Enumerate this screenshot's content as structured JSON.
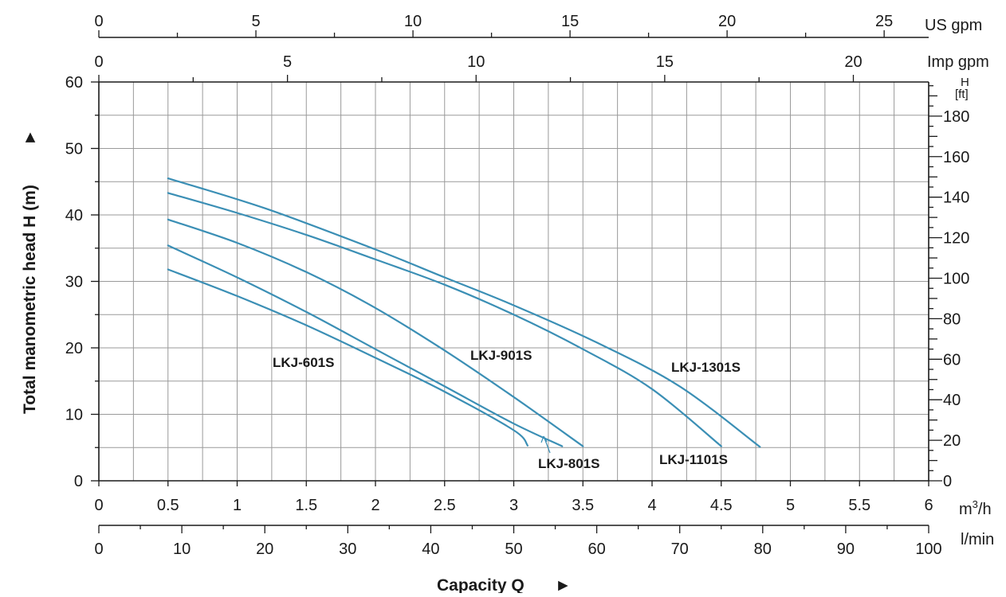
{
  "chart_data": {
    "type": "line",
    "axes": {
      "x_primary": {
        "label": "Capacity Q",
        "unit": "m³/h",
        "range": [
          0,
          6
        ],
        "ticks": [
          0,
          0.5,
          1,
          1.5,
          2,
          2.5,
          3,
          3.5,
          4,
          4.5,
          5,
          5.5,
          6
        ],
        "tick_labels": [
          "0",
          "0.5",
          "1",
          "1.5",
          "2",
          "2.5",
          "3",
          "3.5",
          "4",
          "4.5",
          "5",
          "5.5",
          "6"
        ]
      },
      "x_lmin": {
        "unit": "l/min",
        "range": [
          0,
          100
        ],
        "ticks": [
          0,
          10,
          20,
          30,
          40,
          50,
          60,
          70,
          80,
          90,
          100
        ],
        "tick_labels": [
          "0",
          "10",
          "20",
          "30",
          "40",
          "50",
          "60",
          "70",
          "80",
          "90",
          "100"
        ]
      },
      "x_imp_gpm": {
        "unit": "Imp gpm",
        "ticks": [
          0,
          5,
          10,
          15,
          20
        ],
        "tick_labels": [
          "0",
          "5",
          "10",
          "15",
          "20"
        ]
      },
      "x_us_gpm": {
        "unit": "US gpm",
        "ticks": [
          0,
          5,
          10,
          15,
          20,
          25
        ],
        "tick_labels": [
          "0",
          "5",
          "10",
          "15",
          "20",
          "25"
        ]
      },
      "y_primary": {
        "label": "Total manometric head H (m)",
        "range": [
          0,
          60
        ],
        "ticks": [
          0,
          10,
          20,
          30,
          40,
          50,
          60
        ],
        "tick_labels": [
          "0",
          "10",
          "20",
          "30",
          "40",
          "50",
          "60"
        ]
      },
      "y_ft": {
        "unit": "H",
        "unit_sub": "[ft]",
        "ticks": [
          0,
          20,
          40,
          60,
          80,
          100,
          120,
          140,
          160,
          180
        ],
        "tick_labels": [
          "0",
          "20",
          "40",
          "60",
          "80",
          "100",
          "120",
          "140",
          "160",
          "180"
        ]
      }
    },
    "grid": true,
    "series": [
      {
        "name": "LKJ-601S",
        "x": [
          0.5,
          1.0,
          1.5,
          2.0,
          2.5,
          3.0,
          3.1
        ],
        "y": [
          31.8,
          27.8,
          23.4,
          18.5,
          13.4,
          7.6,
          5.3
        ]
      },
      {
        "name": "LKJ-801S",
        "x": [
          0.5,
          1.0,
          1.5,
          2.0,
          2.5,
          3.0,
          3.35
        ],
        "y": [
          35.4,
          30.6,
          25.4,
          19.8,
          14.2,
          8.6,
          5.2
        ]
      },
      {
        "name": "LKJ-901S",
        "x": [
          0.5,
          1.0,
          1.5,
          2.0,
          2.5,
          3.0,
          3.5
        ],
        "y": [
          39.3,
          35.8,
          31.4,
          26.0,
          19.6,
          12.6,
          5.2
        ]
      },
      {
        "name": "LKJ-1101S",
        "x": [
          0.5,
          1.0,
          1.5,
          2.0,
          2.5,
          3.0,
          3.5,
          4.0,
          4.5
        ],
        "y": [
          43.3,
          40.3,
          37.0,
          33.3,
          29.5,
          25.0,
          19.8,
          13.8,
          5.2
        ]
      },
      {
        "name": "LKJ-1301S",
        "x": [
          0.5,
          1.2,
          2.0,
          2.5,
          3.0,
          3.6,
          4.2,
          4.78
        ],
        "y": [
          45.5,
          41.0,
          34.8,
          30.6,
          26.4,
          20.8,
          14.2,
          5.1
        ]
      }
    ],
    "series_color": "#3b8fb5"
  },
  "text": {
    "x_title": "Capacity Q",
    "x_title_arrow": "►",
    "y_title": "Total manometric head H (m)",
    "y_title_arrow": "►",
    "unit_m3h_base": "m",
    "unit_m3h_sup": "3",
    "unit_m3h_tail": "/h",
    "unit_lmin": "l/min",
    "unit_imp": "Imp gpm",
    "unit_us": "US gpm",
    "unit_ft_top": "H",
    "unit_ft_bottom": "[ft]"
  }
}
